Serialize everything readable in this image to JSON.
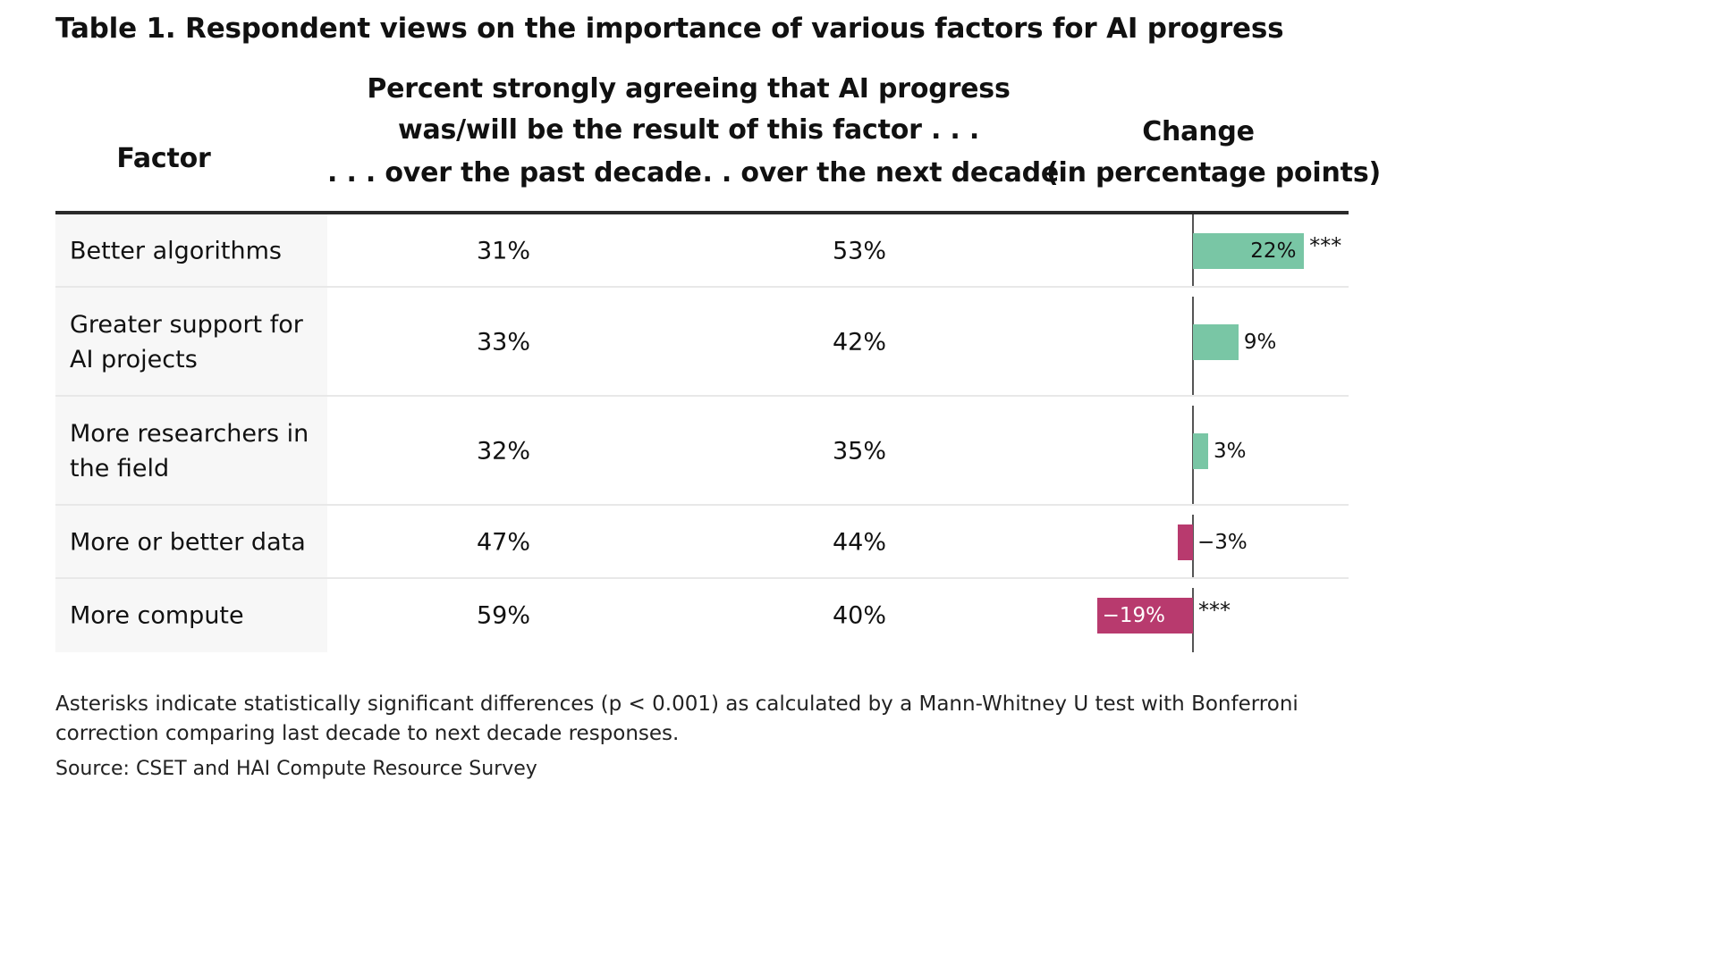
{
  "title": "Table 1. Respondent views on the importance of various factors for AI progress",
  "header": {
    "factor": "Factor",
    "group_line1": "Percent strongly agreeing that AI progress",
    "group_line2": "was/will be the result of this factor . . .",
    "past": ". . . over the past decade",
    "next": ". . . over the next decade",
    "change_line1": "Change",
    "change_line2": "(in percentage points)"
  },
  "colors": {
    "positive": "#79c6a5",
    "negative": "#b83a6e",
    "axis": "#555555"
  },
  "chart_data": {
    "type": "table",
    "columns": [
      "Factor",
      ". . . over the past decade",
      ". . . over the next decade",
      "Change (in percentage points)"
    ],
    "rows": [
      {
        "factor": "Better algorithms",
        "past": "31%",
        "next": "53%",
        "change": 22,
        "change_label": "22%",
        "significant": "***"
      },
      {
        "factor": "Greater support for AI projects",
        "past": "33%",
        "next": "42%",
        "change": 9,
        "change_label": "9%",
        "significant": ""
      },
      {
        "factor": "More researchers in the field",
        "past": "32%",
        "next": "35%",
        "change": 3,
        "change_label": "3%",
        "significant": ""
      },
      {
        "factor": "More or better data",
        "past": "47%",
        "next": "44%",
        "change": -3,
        "change_label": "−3%",
        "significant": ""
      },
      {
        "factor": "More compute",
        "past": "59%",
        "next": "40%",
        "change": -19,
        "change_label": "−19%",
        "significant": "***"
      }
    ]
  },
  "note": "Asterisks indicate statistically significant differences (p < 0.001) as calculated by a Mann-Whitney U test with Bonferroni correction comparing last decade to next decade responses.",
  "source": "Source: CSET and HAI Compute Resource Survey"
}
